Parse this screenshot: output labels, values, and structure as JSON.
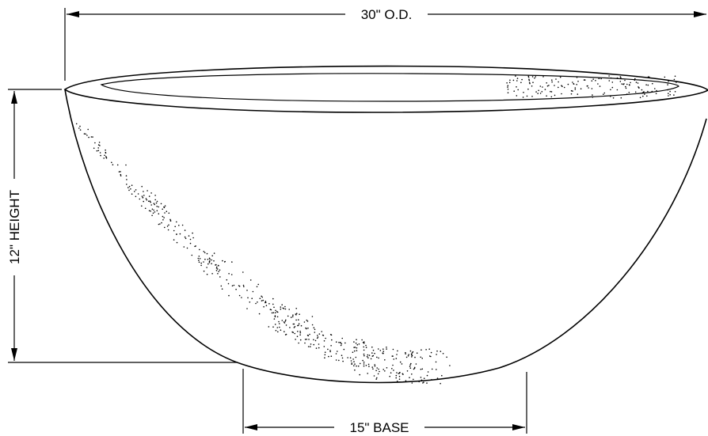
{
  "diagram": {
    "dimensions": {
      "outer_diameter_label": "30\" O.D.",
      "height_label": "12\" HEIGHT",
      "base_label": "15\" BASE"
    }
  }
}
